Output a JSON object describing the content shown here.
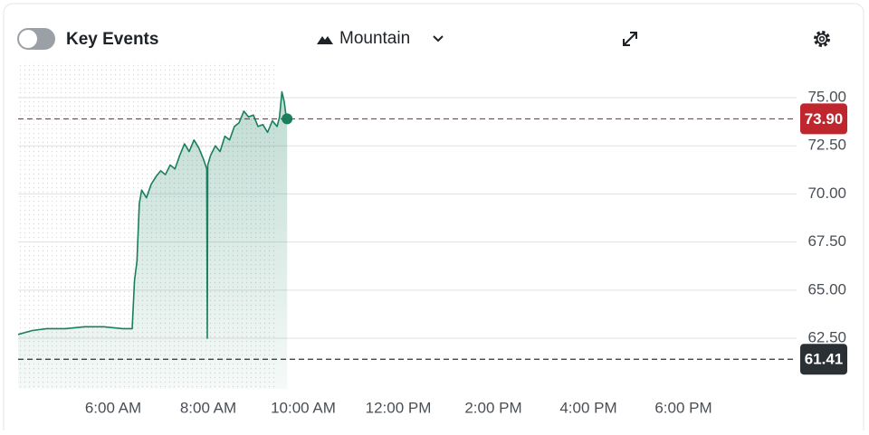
{
  "chart_data": {
    "type": "area",
    "toggle_label": "Key Events",
    "chart_style": "Mountain",
    "xlim": [
      4,
      20
    ],
    "xticks": [
      {
        "value": 6,
        "label": "6:00 AM"
      },
      {
        "value": 8,
        "label": "8:00 AM"
      },
      {
        "value": 10,
        "label": "10:00 AM"
      },
      {
        "value": 12,
        "label": "12:00 PM"
      },
      {
        "value": 14,
        "label": "2:00 PM"
      },
      {
        "value": 16,
        "label": "4:00 PM"
      },
      {
        "value": 18,
        "label": "6:00 PM"
      }
    ],
    "ylim": [
      59.87,
      76.88
    ],
    "yticks": [
      {
        "value": 62.5,
        "label": "62.50"
      },
      {
        "value": 65,
        "label": "65.00"
      },
      {
        "value": 67.5,
        "label": "67.50"
      },
      {
        "value": 70,
        "label": "70.00"
      },
      {
        "value": 72.5,
        "label": "72.50"
      },
      {
        "value": 75,
        "label": "75.00"
      }
    ],
    "grid": true,
    "series": [
      {
        "color": "#1a7f5f",
        "x": [
          4.0,
          4.3,
          4.6,
          5.0,
          5.4,
          5.8,
          6.2,
          6.4,
          6.45,
          6.5,
          6.55,
          6.6,
          6.7,
          6.8,
          6.9,
          7.0,
          7.1,
          7.2,
          7.3,
          7.4,
          7.5,
          7.6,
          7.7,
          7.8,
          7.9,
          7.97,
          7.98,
          7.99,
          8.05,
          8.15,
          8.25,
          8.35,
          8.45,
          8.55,
          8.65,
          8.75,
          8.85,
          8.95,
          9.05,
          9.15,
          9.25,
          9.35,
          9.45,
          9.5,
          9.55,
          9.6,
          9.63,
          9.66
        ],
        "values": [
          62.7,
          62.9,
          63.0,
          63.0,
          63.1,
          63.1,
          63.0,
          63.0,
          65.5,
          66.5,
          69.5,
          70.2,
          69.8,
          70.5,
          70.9,
          71.2,
          71.0,
          71.5,
          71.3,
          72.0,
          72.6,
          72.2,
          72.8,
          72.4,
          71.8,
          71.3,
          62.5,
          71.5,
          72.0,
          72.5,
          72.2,
          73.0,
          72.8,
          73.5,
          73.7,
          74.3,
          74.0,
          74.1,
          73.5,
          73.6,
          73.2,
          73.8,
          73.5,
          74.0,
          75.3,
          74.8,
          74.2,
          73.9
        ]
      }
    ],
    "reference_lines": [
      {
        "value": 73.9,
        "label": "73.90",
        "color": "#c0262d"
      },
      {
        "value": 61.41,
        "label": "61.41",
        "color": "#2b3035"
      }
    ]
  }
}
